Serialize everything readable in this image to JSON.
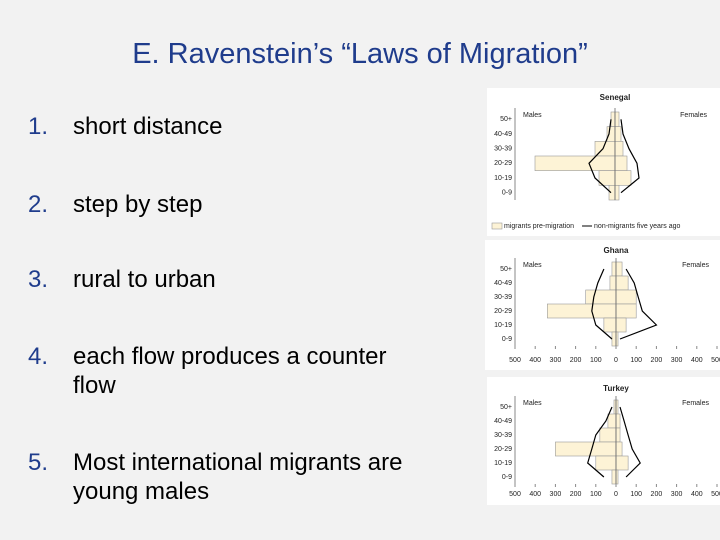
{
  "slide": {
    "title": "E.  Ravenstein’s “Laws of Migration”",
    "items": [
      {
        "number": "1.",
        "text": "short distance"
      },
      {
        "number": "2.",
        "text": "step by step"
      },
      {
        "number": "3.",
        "text": "rural to urban"
      },
      {
        "number": "4.",
        "text": "each flow produces a counter flow"
      },
      {
        "number": "5.",
        "text": "Most international migrants are young males"
      }
    ],
    "charts": [
      {
        "type": "pyramid",
        "title": "Senegal",
        "left_label": "Males",
        "right_label": "Females",
        "categories": [
          "50+",
          "40-49",
          "30-39",
          "20-29",
          "10-19",
          "0-9"
        ],
        "xlim": [
          -500,
          500
        ],
        "series": [
          {
            "name": "migrants pre-migration",
            "kind": "bar",
            "color": "#fdf3d6",
            "males": [
              20,
              40,
              100,
              400,
              80,
              30
            ],
            "females": [
              20,
              30,
              40,
              60,
              80,
              20
            ]
          },
          {
            "name": "non-migrants five years ago",
            "kind": "line",
            "color": "#000000",
            "males": [
              20,
              30,
              60,
              130,
              100,
              20
            ],
            "females": [
              30,
              40,
              70,
              110,
              120,
              30
            ]
          }
        ]
      },
      {
        "type": "pyramid",
        "title": "Ghana",
        "left_label": "Males",
        "right_label": "Females",
        "categories": [
          "50+",
          "40-49",
          "30-39",
          "20-29",
          "10-19",
          "0-9"
        ],
        "xlim": [
          -500,
          500
        ],
        "xticks": [
          {
            "value": -500,
            "label": "500"
          },
          {
            "value": -400,
            "label": "400"
          },
          {
            "value": -300,
            "label": "300"
          },
          {
            "value": -200,
            "label": "200"
          },
          {
            "value": -100,
            "label": "100"
          },
          0,
          100,
          200,
          300,
          400,
          500
        ],
        "series": [
          {
            "kind": "bar",
            "color": "#fdf3d6",
            "males": [
              20,
              30,
              150,
              340,
              60,
              20
            ],
            "females": [
              30,
              60,
              100,
              100,
              50,
              10
            ]
          },
          {
            "kind": "line",
            "color": "#000000",
            "males": [
              60,
              90,
              110,
              120,
              100,
              20
            ],
            "females": [
              50,
              90,
              110,
              130,
              200,
              20
            ]
          }
        ]
      },
      {
        "type": "pyramid",
        "title": "Turkey",
        "left_label": "Males",
        "right_label": "Females",
        "categories": [
          "50+",
          "40-49",
          "30-39",
          "20-29",
          "10-19",
          "0-9"
        ],
        "xlim": [
          -500,
          500
        ],
        "xticks": [
          {
            "value": -500,
            "label": "500"
          },
          {
            "value": -400,
            "label": "400"
          },
          {
            "value": -300,
            "label": "300"
          },
          {
            "value": -200,
            "label": "200"
          },
          {
            "value": -100,
            "label": "100"
          },
          0,
          100,
          200,
          300,
          400,
          500
        ],
        "series": [
          {
            "kind": "bar",
            "color": "#fdf3d6",
            "males": [
              10,
              40,
              80,
              300,
              100,
              20
            ],
            "females": [
              10,
              20,
              20,
              30,
              60,
              10
            ]
          },
          {
            "kind": "line",
            "color": "#000000",
            "males": [
              20,
              50,
              100,
              120,
              140,
              60
            ],
            "females": [
              20,
              40,
              60,
              80,
              120,
              50
            ]
          }
        ]
      }
    ]
  }
}
